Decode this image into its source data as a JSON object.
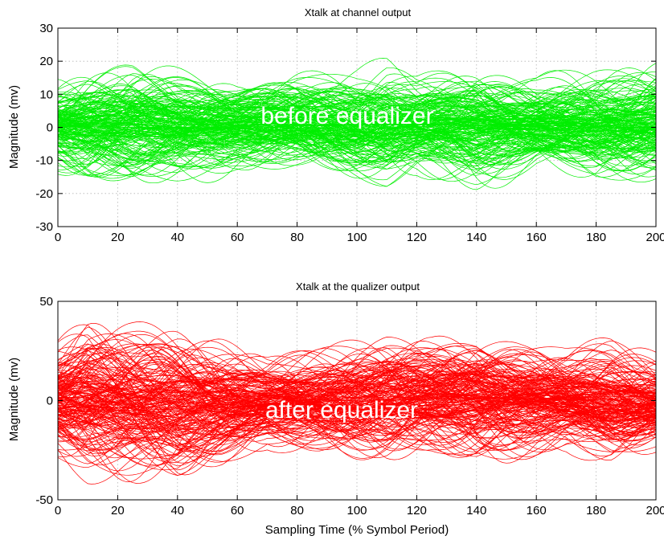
{
  "chart_data": [
    {
      "type": "line",
      "title": "Xtalk at channel output",
      "xlabel": "",
      "ylabel": "Magnitude (mv)",
      "xlim": [
        0,
        200
      ],
      "ylim": [
        -30,
        30
      ],
      "xticks": [
        0,
        20,
        40,
        60,
        80,
        100,
        120,
        140,
        160,
        180,
        200
      ],
      "yticks": [
        -30,
        -20,
        -10,
        0,
        10,
        20,
        30
      ],
      "grid": true,
      "color": "#00ee00",
      "trace_count": 200,
      "envelope": {
        "x": [
          0,
          10,
          25,
          40,
          60,
          80,
          100,
          110,
          120,
          140,
          160,
          180,
          200
        ],
        "upper": [
          15,
          19,
          21,
          18,
          14,
          17,
          18,
          20,
          16,
          19,
          15,
          18,
          19
        ],
        "lower": [
          -14,
          -18,
          -20,
          -18,
          -13,
          -14,
          -17,
          -19,
          -15,
          -18,
          -14,
          -18,
          -16
        ]
      },
      "annotation": "before equalizer"
    },
    {
      "type": "line",
      "title": "Xtalk at the qualizer output",
      "xlabel": "Sampling Time (% Symbol Period)",
      "ylabel": "Magnitude (mv)",
      "xlim": [
        0,
        200
      ],
      "ylim": [
        -50,
        50
      ],
      "xticks": [
        0,
        20,
        40,
        60,
        80,
        100,
        120,
        140,
        160,
        180,
        200
      ],
      "yticks": [
        -50,
        0,
        50
      ],
      "ytick_labels": [
        "-50",
        "0",
        "50"
      ],
      "grid": true,
      "color": "#ff0000",
      "trace_count": 200,
      "envelope": {
        "x": [
          0,
          10,
          25,
          40,
          55,
          70,
          90,
          110,
          125,
          140,
          155,
          170,
          185,
          200
        ],
        "upper": [
          32,
          42,
          38,
          36,
          30,
          22,
          28,
          34,
          32,
          36,
          30,
          26,
          30,
          26
        ],
        "lower": [
          -30,
          -38,
          -42,
          -45,
          -36,
          -24,
          -28,
          -32,
          -30,
          -34,
          -30,
          -26,
          -32,
          -28
        ]
      },
      "annotation": "after equalizer"
    }
  ]
}
